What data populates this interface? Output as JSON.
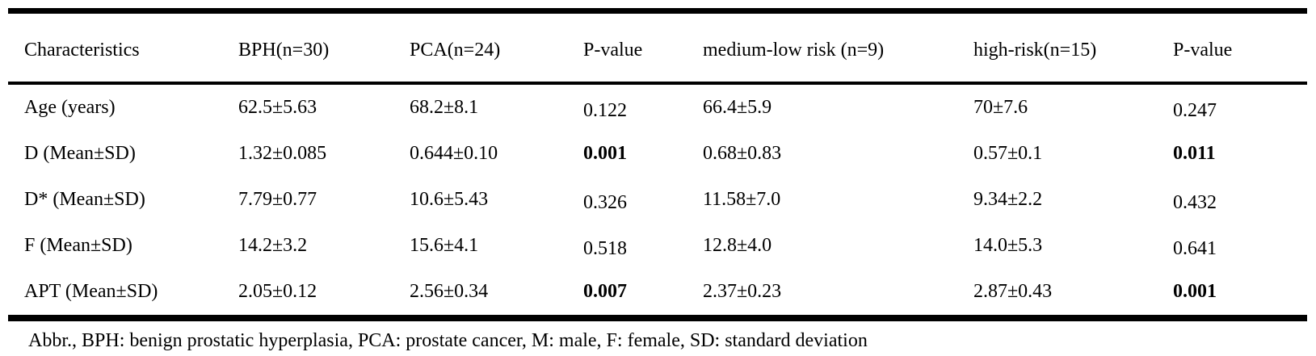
{
  "table": {
    "columns": [
      "Characteristics",
      "BPH(n=30)",
      "PCA(n=24)",
      "P-value",
      "medium-low risk (n=9)",
      "high-risk(n=15)",
      "P-value"
    ],
    "p_value_column_indices": [
      3,
      6
    ],
    "rows": [
      {
        "cells": [
          "Age (years)",
          "62.5±5.63",
          "68.2±8.1",
          "0.122",
          "66.4±5.9",
          "70±7.6",
          "0.247"
        ],
        "bold": []
      },
      {
        "cells": [
          "D (Mean±SD)",
          "1.32±0.085",
          "0.644±0.10",
          "0.001",
          "0.68±0.83",
          "0.57±0.1",
          "0.011"
        ],
        "bold": [
          3,
          6
        ]
      },
      {
        "cells": [
          "D* (Mean±SD)",
          "7.79±0.77",
          "10.6±5.43",
          "0.326",
          "11.58±7.0",
          "9.34±2.2",
          "0.432"
        ],
        "bold": []
      },
      {
        "cells": [
          "F (Mean±SD)",
          "14.2±3.2",
          "15.6±4.1",
          "0.518",
          "12.8±4.0",
          "14.0±5.3",
          "0.641"
        ],
        "bold": []
      },
      {
        "cells": [
          "APT (Mean±SD)",
          "2.05±0.12",
          "2.56±0.34",
          "0.007",
          "2.37±0.23",
          "2.87±0.43",
          "0.001"
        ],
        "bold": [
          3,
          6
        ]
      }
    ],
    "footnote": "Abbr., BPH: benign prostatic hyperplasia, PCA: prostate cancer, M: male, F: female, SD: standard deviation"
  },
  "colors": {
    "text": "#000000",
    "background": "#ffffff",
    "rule": "#000000"
  }
}
